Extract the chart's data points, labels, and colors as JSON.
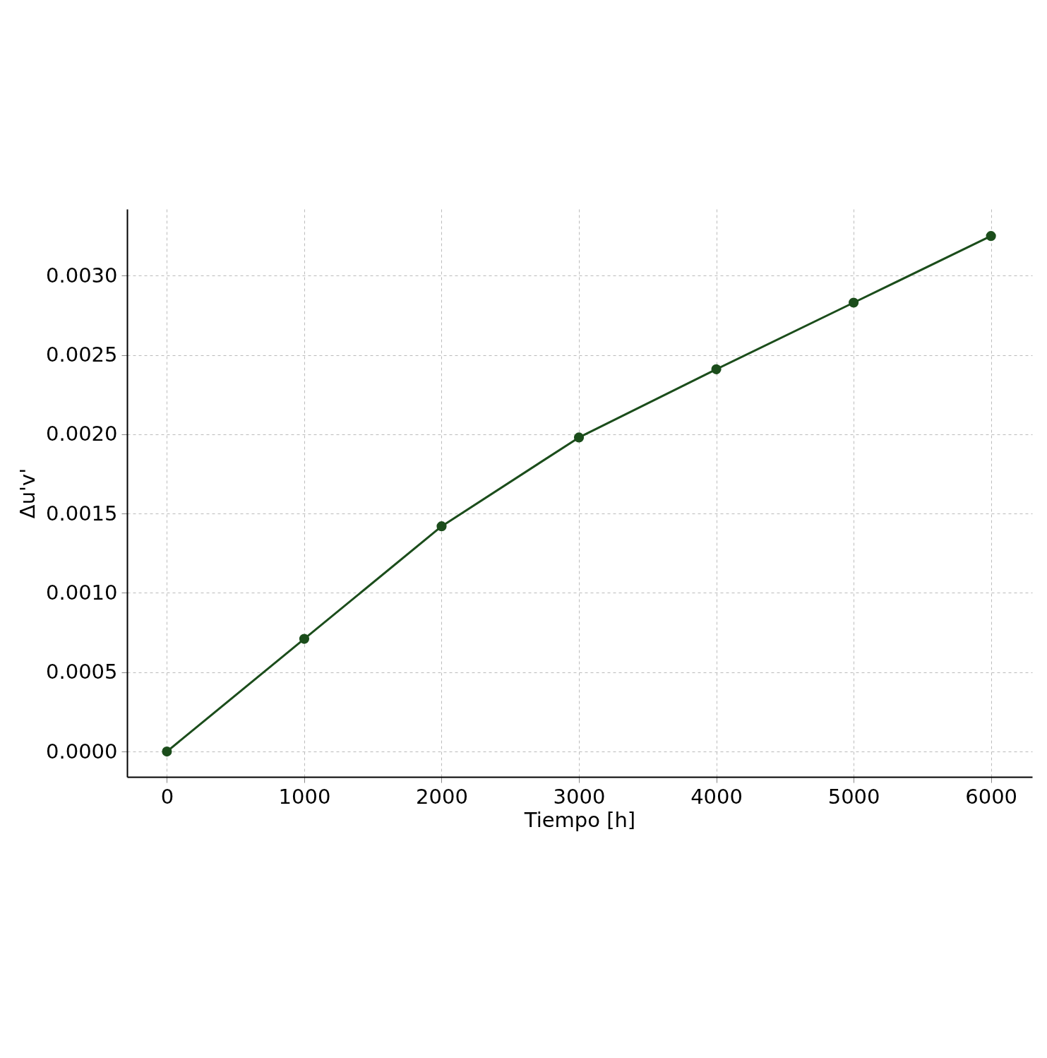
{
  "chart_data": {
    "type": "line",
    "xlabel": "Tiempo [h]",
    "ylabel": "Δu'v'",
    "x": [
      0,
      1000,
      2000,
      3000,
      4000,
      5000,
      6000
    ],
    "series": [
      {
        "color": "#1b4d1b",
        "values": [
          0,
          0.00071,
          0.00142,
          0.00198,
          0.00241,
          0.00283,
          0.00325
        ]
      }
    ],
    "xlim": [
      -290,
      6300
    ],
    "ylim": [
      -0.00016,
      0.00342
    ],
    "xticks": [
      0,
      1000,
      2000,
      3000,
      4000,
      5000,
      6000
    ],
    "yticks": [
      {
        "value": 0,
        "label": "0.0000"
      },
      {
        "value": 0.0005,
        "label": "0.0005"
      },
      {
        "value": 0.001,
        "label": "0.0010"
      },
      {
        "value": 0.0015,
        "label": "0.0015"
      },
      {
        "value": 0.002,
        "label": "0.0020"
      },
      {
        "value": 0.0025,
        "label": "0.0025"
      },
      {
        "value": 0.003,
        "label": "0.0030"
      }
    ],
    "grid": true,
    "marker": "circle",
    "line_style": "solid"
  }
}
